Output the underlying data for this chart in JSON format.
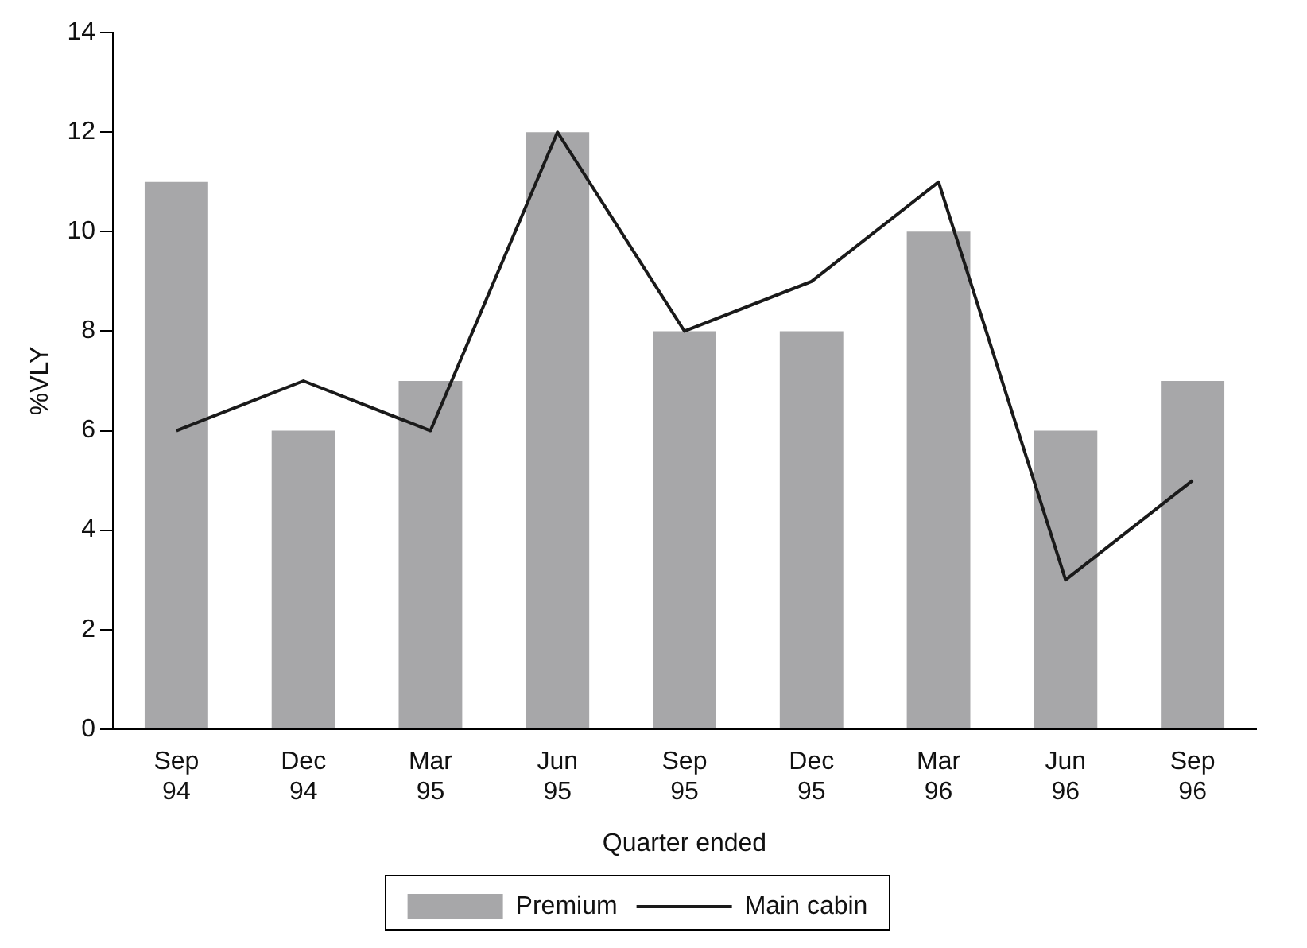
{
  "chart_data": {
    "type": "bar",
    "xlabel": "Quarter ended",
    "ylabel": "%VLY",
    "categories": [
      "Sep 94",
      "Dec 94",
      "Mar 95",
      "Jun 95",
      "Sep 95",
      "Dec 95",
      "Mar 96",
      "Jun 96",
      "Sep 96"
    ],
    "series": [
      {
        "name": "Premium",
        "color": "#a7a7a9",
        "values": [
          11,
          6,
          7,
          12,
          8,
          8,
          10,
          6,
          7
        ]
      },
      {
        "name": "Main cabin",
        "type": "line",
        "color": "#1a1a1a",
        "values": [
          6,
          7,
          6,
          12,
          8,
          9,
          11,
          3,
          5
        ]
      }
    ],
    "ylim": [
      0,
      14
    ],
    "yticks": [
      0,
      2,
      4,
      6,
      8,
      10,
      12,
      14
    ],
    "grid": false,
    "legend": "bottom",
    "marker": "none",
    "line_style": "solid"
  }
}
